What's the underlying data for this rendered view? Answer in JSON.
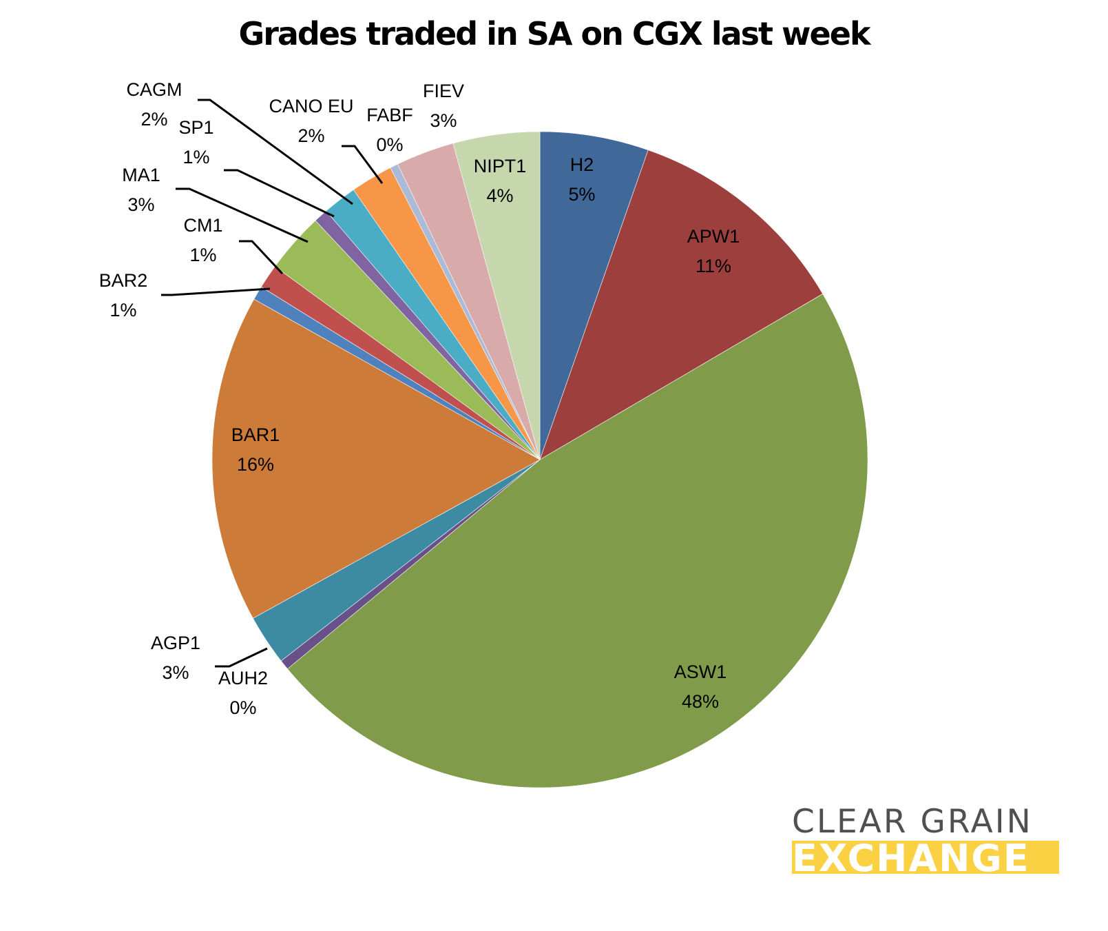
{
  "chart_data": {
    "type": "pie",
    "title": "Grades traded in SA on CGX last week",
    "start_angle_deg": 0,
    "direction": "clockwise",
    "slices": [
      {
        "label": "H2",
        "pct_label": "5%",
        "value": 5.4,
        "color": "#40699a"
      },
      {
        "label": "APW1",
        "pct_label": "11%",
        "value": 11.3,
        "color": "#9c3f3d"
      },
      {
        "label": "ASW1",
        "pct_label": "48%",
        "value": 47.8,
        "color": "#809c4a"
      },
      {
        "label": "AUH2",
        "pct_label": "0%",
        "value": 0.5,
        "color": "#6a5089"
      },
      {
        "label": "AGP1",
        "pct_label": "3%",
        "value": 2.5,
        "color": "#3d8ba3"
      },
      {
        "label": "BAR1",
        "pct_label": "16%",
        "value": 16.3,
        "color": "#cc7b39"
      },
      {
        "label": "BAR2",
        "pct_label": "1%",
        "value": 0.7,
        "color": "#4f81bd"
      },
      {
        "label": "CM1",
        "pct_label": "1%",
        "value": 1.2,
        "color": "#c0504d"
      },
      {
        "label": "MA1",
        "pct_label": "3%",
        "value": 3.0,
        "color": "#9bbb59"
      },
      {
        "label": "SP1",
        "pct_label": "1%",
        "value": 0.7,
        "color": "#8064a2"
      },
      {
        "label": "CAGM",
        "pct_label": "2%",
        "value": 1.7,
        "color": "#4bacc6"
      },
      {
        "label": "CANO EU",
        "pct_label": "2%",
        "value": 2.1,
        "color": "#f79646"
      },
      {
        "label": "FABF",
        "pct_label": "0%",
        "value": 0.4,
        "color": "#aabad7"
      },
      {
        "label": "FIEV",
        "pct_label": "3%",
        "value": 2.9,
        "color": "#d9aaaa"
      },
      {
        "label": "NIPT1",
        "pct_label": "4%",
        "value": 4.3,
        "color": "#c6d6ad"
      }
    ],
    "legend": "none (data labels with leader lines)"
  },
  "branding": {
    "logo_line1": "CLEAR GRAIN",
    "logo_line2": "EXCHANGE",
    "logo_text_color": "#505050",
    "logo_bar_color": "#fbd144"
  }
}
